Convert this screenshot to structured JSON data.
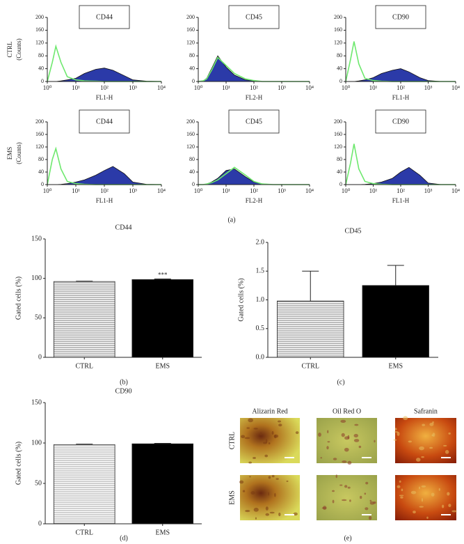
{
  "chart_data": [
    {
      "type": "area",
      "title": "CD44",
      "row_label": "CTRL",
      "ylabel": "(Counts)",
      "xlabel": "FL1-H",
      "log_x": true,
      "x": [
        1,
        1.5,
        2,
        3,
        5,
        10,
        20,
        50,
        100,
        200,
        500,
        1000,
        3000,
        10000
      ],
      "xlim": [
        1,
        10000
      ],
      "xticks": [
        {
          "value": 1,
          "label": "10⁰"
        },
        {
          "value": 10,
          "label": "10¹"
        },
        {
          "value": 100,
          "label": "10²"
        },
        {
          "value": 1000,
          "label": "10³"
        },
        {
          "value": 10000,
          "label": "10⁴"
        }
      ],
      "ylim": [
        0,
        200
      ],
      "yticks": [
        0,
        40,
        80,
        120,
        160,
        200
      ],
      "series": [
        {
          "color": "#2b3aa8",
          "fill": true,
          "values": [
            0,
            0,
            0,
            2,
            5,
            10,
            25,
            38,
            42,
            35,
            18,
            5,
            1,
            0
          ]
        },
        {
          "color": "#6ee86e",
          "fill": false,
          "values": [
            0,
            60,
            110,
            60,
            15,
            5,
            2,
            1,
            0,
            0,
            0,
            0,
            0,
            0
          ]
        }
      ]
    },
    {
      "type": "area",
      "title": "CD45",
      "xlabel": "FL2-H",
      "log_x": true,
      "x": [
        1,
        1.5,
        2,
        3,
        5,
        10,
        20,
        50,
        100,
        200,
        500,
        1000,
        3000,
        10000
      ],
      "xlim": [
        1,
        10000
      ],
      "xticks": [
        {
          "value": 1,
          "label": "10⁰"
        },
        {
          "value": 10,
          "label": "10¹"
        },
        {
          "value": 100,
          "label": "10²"
        },
        {
          "value": 1000,
          "label": "10³"
        },
        {
          "value": 10000,
          "label": "10⁴"
        }
      ],
      "ylim": [
        0,
        200
      ],
      "yticks": [
        0,
        40,
        80,
        120,
        160,
        200
      ],
      "series": [
        {
          "color": "#2b3aa8",
          "fill": true,
          "values": [
            0,
            2,
            10,
            40,
            80,
            45,
            20,
            5,
            2,
            0,
            0,
            0,
            0,
            0
          ]
        },
        {
          "color": "#6ee86e",
          "fill": false,
          "values": [
            0,
            2,
            8,
            35,
            75,
            50,
            25,
            8,
            3,
            0,
            0,
            0,
            0,
            0
          ]
        }
      ]
    },
    {
      "type": "area",
      "title": "CD90",
      "xlabel": "FL1-H",
      "log_x": true,
      "x": [
        1,
        1.5,
        2,
        3,
        5,
        10,
        20,
        50,
        100,
        200,
        500,
        1000,
        3000,
        10000
      ],
      "xlim": [
        1,
        10000
      ],
      "xticks": [
        {
          "value": 1,
          "label": "10⁰"
        },
        {
          "value": 10,
          "label": "10¹"
        },
        {
          "value": 100,
          "label": "10²"
        },
        {
          "value": 1000,
          "label": "10³"
        },
        {
          "value": 10000,
          "label": "10⁴"
        }
      ],
      "ylim": [
        0,
        200
      ],
      "yticks": [
        0,
        40,
        80,
        120,
        160,
        200
      ],
      "series": [
        {
          "color": "#2b3aa8",
          "fill": true,
          "values": [
            0,
            0,
            0,
            2,
            5,
            12,
            25,
            35,
            40,
            30,
            12,
            3,
            0,
            0
          ]
        },
        {
          "color": "#6ee86e",
          "fill": false,
          "values": [
            0,
            70,
            125,
            55,
            10,
            3,
            1,
            0,
            0,
            0,
            0,
            0,
            0,
            0
          ]
        }
      ]
    },
    {
      "type": "area",
      "title": "CD44",
      "row_label": "EMS",
      "ylabel": "(Counts)",
      "xlabel": "FL1-H",
      "log_x": true,
      "x": [
        1,
        1.5,
        2,
        3,
        5,
        10,
        20,
        50,
        100,
        200,
        500,
        1000,
        3000,
        10000
      ],
      "xlim": [
        1,
        10000
      ],
      "xticks": [
        {
          "value": 1,
          "label": "10⁰"
        },
        {
          "value": 10,
          "label": "10¹"
        },
        {
          "value": 100,
          "label": "10²"
        },
        {
          "value": 1000,
          "label": "10³"
        },
        {
          "value": 10000,
          "label": "10⁴"
        }
      ],
      "ylim": [
        0,
        200
      ],
      "yticks": [
        0,
        40,
        80,
        120,
        160,
        200
      ],
      "series": [
        {
          "color": "#2b3aa8",
          "fill": true,
          "values": [
            0,
            0,
            0,
            1,
            3,
            8,
            15,
            30,
            45,
            58,
            35,
            8,
            1,
            0
          ]
        },
        {
          "color": "#6ee86e",
          "fill": false,
          "values": [
            0,
            80,
            115,
            50,
            10,
            3,
            1,
            0,
            0,
            0,
            0,
            0,
            0,
            0
          ]
        }
      ]
    },
    {
      "type": "area",
      "title": "CD45",
      "xlabel": "FL2-H",
      "log_x": true,
      "x": [
        1,
        1.5,
        2,
        3,
        5,
        10,
        20,
        50,
        100,
        200,
        500,
        1000,
        3000,
        10000
      ],
      "xlim": [
        1,
        10000
      ],
      "xticks": [
        {
          "value": 1,
          "label": "10⁰"
        },
        {
          "value": 10,
          "label": "10¹"
        },
        {
          "value": 100,
          "label": "10²"
        },
        {
          "value": 1000,
          "label": "10³"
        },
        {
          "value": 10000,
          "label": "10⁴"
        }
      ],
      "ylim": [
        0,
        200
      ],
      "yticks": [
        0,
        40,
        80,
        120,
        160,
        200
      ],
      "series": [
        {
          "color": "#2b3aa8",
          "fill": true,
          "values": [
            0,
            0,
            2,
            8,
            20,
            45,
            50,
            25,
            8,
            2,
            0,
            0,
            0,
            0
          ]
        },
        {
          "color": "#6ee86e",
          "fill": false,
          "values": [
            0,
            0,
            2,
            6,
            15,
            35,
            55,
            30,
            10,
            2,
            0,
            0,
            0,
            0
          ]
        }
      ]
    },
    {
      "type": "area",
      "title": "CD90",
      "xlabel": "FL1-H",
      "log_x": true,
      "x": [
        1,
        1.5,
        2,
        3,
        5,
        10,
        20,
        50,
        100,
        200,
        500,
        1000,
        3000,
        10000
      ],
      "xlim": [
        1,
        10000
      ],
      "xticks": [
        {
          "value": 1,
          "label": "10⁰"
        },
        {
          "value": 10,
          "label": "10¹"
        },
        {
          "value": 100,
          "label": "10²"
        },
        {
          "value": 1000,
          "label": "10³"
        },
        {
          "value": 10000,
          "label": "10⁴"
        }
      ],
      "ylim": [
        0,
        200
      ],
      "yticks": [
        0,
        40,
        80,
        120,
        160,
        200
      ],
      "series": [
        {
          "color": "#2b3aa8",
          "fill": true,
          "values": [
            0,
            0,
            0,
            0,
            1,
            3,
            8,
            20,
            40,
            55,
            30,
            5,
            0,
            0
          ]
        },
        {
          "color": "#6ee86e",
          "fill": false,
          "values": [
            0,
            70,
            130,
            50,
            10,
            3,
            1,
            0,
            0,
            0,
            0,
            0,
            0,
            0
          ]
        }
      ]
    },
    {
      "type": "bar",
      "title": "CD44",
      "ylabel": "Gated cells (%)",
      "categories": [
        "CTRL",
        "EMS"
      ],
      "values": [
        96,
        98.5
      ],
      "errors": [
        0.5,
        0.8
      ],
      "significance": [
        null,
        "***"
      ],
      "fills": [
        "#ffffff",
        "#000000"
      ],
      "hatch": [
        "#555555",
        null
      ],
      "ylim": [
        0,
        150
      ],
      "yticks": [
        0,
        50,
        100,
        150
      ]
    },
    {
      "type": "bar",
      "title": "CD45",
      "ylabel": "Gated cells (%)",
      "categories": [
        "CTRL",
        "EMS"
      ],
      "values": [
        0.98,
        1.25
      ],
      "errors": [
        0.52,
        0.35
      ],
      "fills": [
        "#ffffff",
        "#000000"
      ],
      "hatch": [
        "#555555",
        null
      ],
      "ylim": [
        0,
        2
      ],
      "yticks": [
        {
          "value": 0,
          "label": "0.0"
        },
        {
          "value": 0.5,
          "label": "0.5"
        },
        {
          "value": 1,
          "label": "1.0"
        },
        {
          "value": 1.5,
          "label": "1.5"
        },
        {
          "value": 2,
          "label": "2.0"
        }
      ]
    },
    {
      "type": "bar",
      "title": "CD90",
      "ylabel": "Gated cells (%)",
      "categories": [
        "CTRL",
        "EMS"
      ],
      "values": [
        98,
        99
      ],
      "errors": [
        0.6,
        0.6
      ],
      "fills": [
        "#ffffff",
        "#000000"
      ],
      "hatch": [
        "#888888",
        null
      ],
      "ylim": [
        0,
        150
      ],
      "yticks": [
        0,
        50,
        100,
        150
      ]
    }
  ],
  "panel_labels": [
    "(a)",
    "(b)",
    "(c)",
    "(d)",
    "(e)"
  ],
  "micrographs": {
    "columns": [
      "Alizarin Red",
      "Oil Red O",
      "Safranin"
    ],
    "rows": [
      "CTRL",
      "EMS"
    ]
  }
}
